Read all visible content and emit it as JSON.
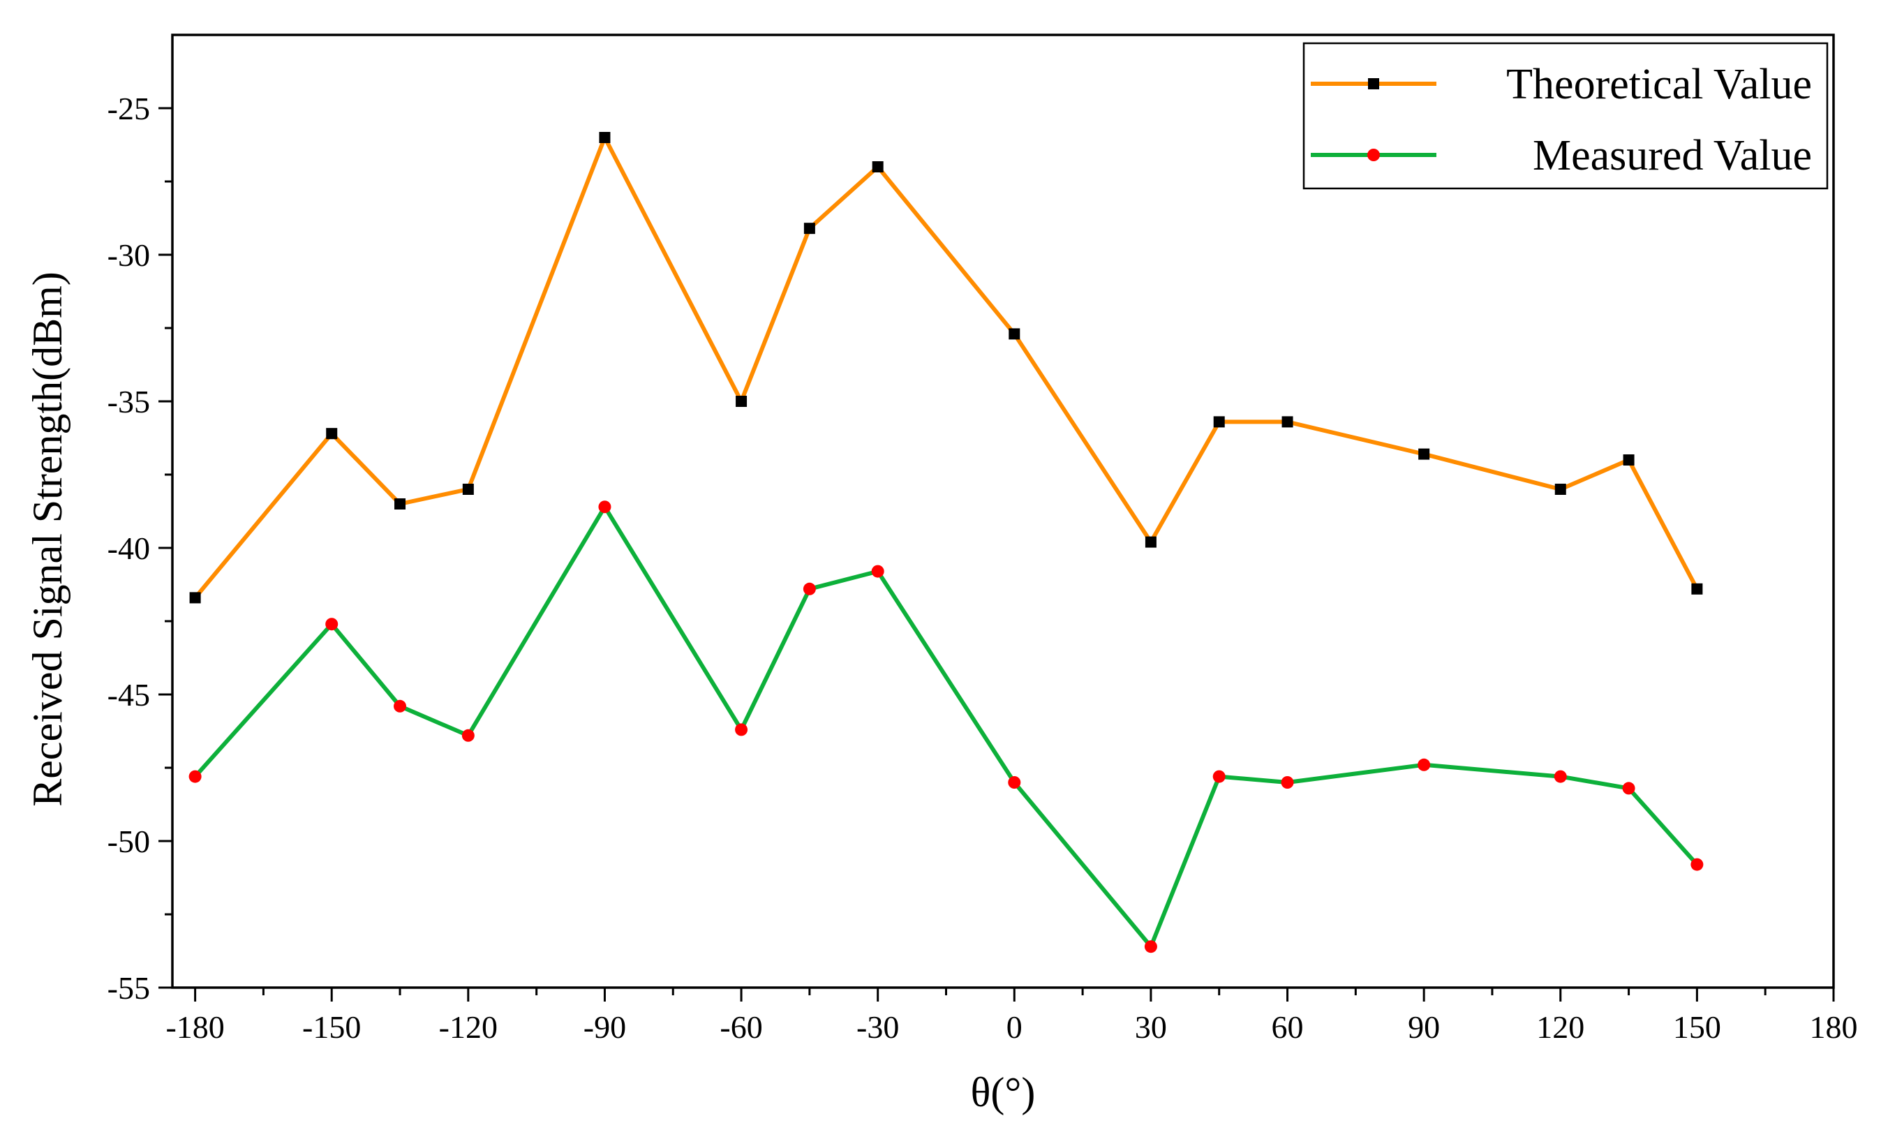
{
  "chart_data": {
    "type": "line",
    "title": "",
    "xlabel": "θ(°)",
    "ylabel": "Received Signal Strength(dBm)",
    "xlim": [
      -185,
      180
    ],
    "ylim": [
      -55,
      -22.5
    ],
    "xticks": [
      -180,
      -150,
      -120,
      -90,
      -60,
      -30,
      0,
      30,
      60,
      90,
      120,
      150,
      180
    ],
    "yticks": [
      -55,
      -50,
      -45,
      -40,
      -35,
      -30,
      -25
    ],
    "x_tick_labels": [
      "-180",
      "-150",
      "-120",
      "-90",
      "-60",
      "-30",
      "0",
      "30",
      "60",
      "90",
      "120",
      "150",
      "180"
    ],
    "y_tick_labels": [
      "-55",
      "-50",
      "-45",
      "-40",
      "-35",
      "-30",
      "-25"
    ],
    "grid": false,
    "legend_position": "top-right",
    "x": [
      -180,
      -150,
      -135,
      -120,
      -90,
      -60,
      -45,
      -30,
      0,
      30,
      45,
      60,
      90,
      120,
      135,
      150
    ],
    "series": [
      {
        "name": "Theoretical Value",
        "color": "#FF8C00",
        "marker": "square",
        "marker_color": "#000000",
        "values": [
          -41.7,
          -36.1,
          -38.5,
          -38.0,
          -26.0,
          -35.0,
          -29.1,
          -27.0,
          -32.7,
          -39.8,
          -35.7,
          -35.7,
          -36.8,
          -38.0,
          -37.0,
          -41.4
        ]
      },
      {
        "name": "Measured Value",
        "color": "#0DB03A",
        "marker": "circle",
        "marker_color": "#FF0000",
        "values": [
          -47.8,
          -42.6,
          -45.4,
          -46.4,
          -38.6,
          -46.2,
          -41.4,
          -40.8,
          -48.0,
          -53.6,
          -47.8,
          -48.0,
          -47.4,
          -47.8,
          -48.2,
          -50.8
        ]
      }
    ]
  }
}
